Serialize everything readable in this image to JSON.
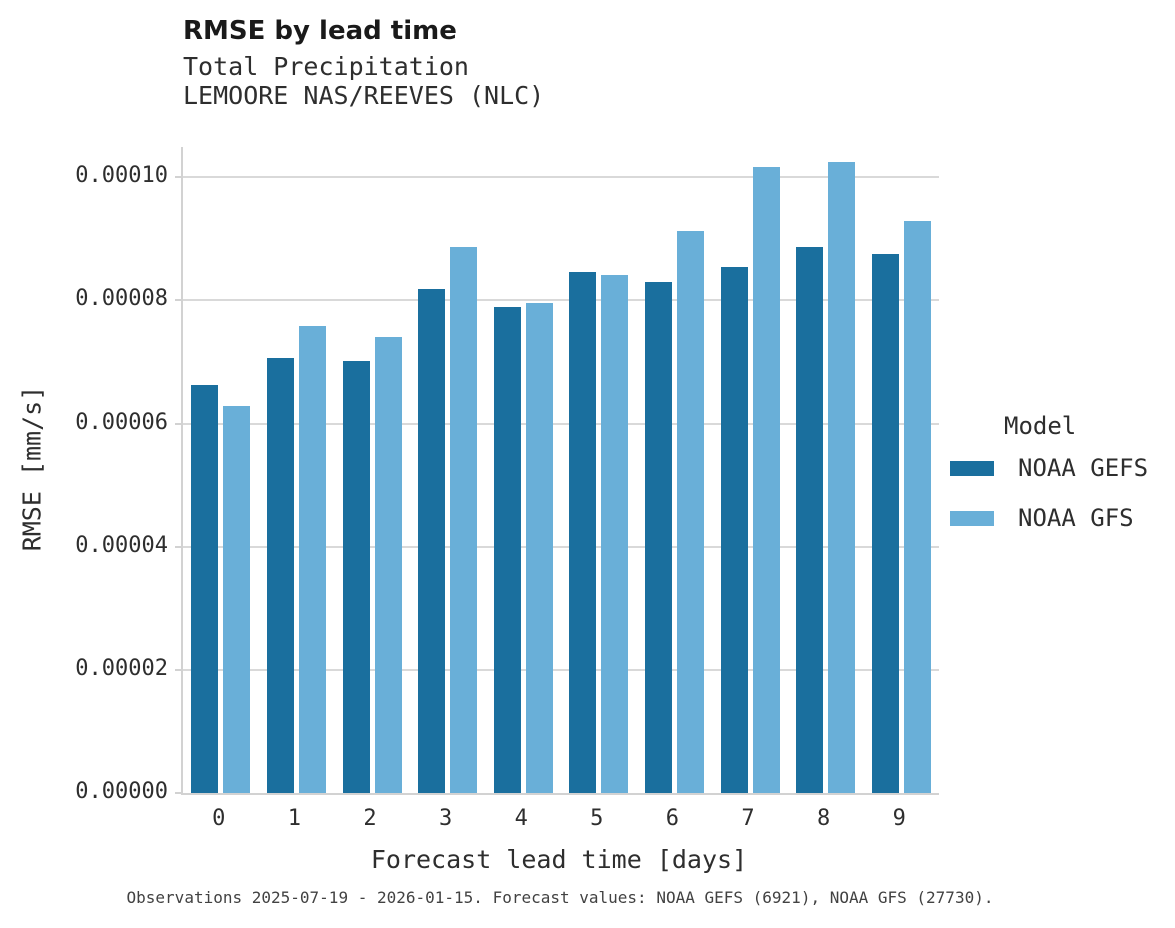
{
  "chart_data": {
    "type": "bar",
    "title": "RMSE by lead time",
    "subtitle": "Total Precipitation",
    "subtitle2": "LEMOORE NAS/REEVES (NLC)",
    "xlabel": "Forecast lead time [days]",
    "ylabel": "RMSE [mm/s]",
    "categories": [
      "0",
      "1",
      "2",
      "3",
      "4",
      "5",
      "6",
      "7",
      "8",
      "9"
    ],
    "series": [
      {
        "name": "NOAA GEFS",
        "color": "#1A6F9E",
        "values": [
          6.62e-05,
          7.07e-05,
          7.01e-05,
          8.18e-05,
          7.89e-05,
          8.46e-05,
          8.29e-05,
          8.54e-05,
          8.86e-05,
          8.75e-05
        ]
      },
      {
        "name": "NOAA GFS",
        "color": "#69AFD8",
        "values": [
          6.28e-05,
          7.59e-05,
          7.41e-05,
          8.86e-05,
          7.96e-05,
          8.41e-05,
          9.12e-05,
          0.0001016,
          0.0001024,
          9.29e-05
        ]
      }
    ],
    "ylim": [
      0,
      0.0001049
    ],
    "yticks": [
      0,
      2e-05,
      4e-05,
      6e-05,
      8e-05,
      0.0001
    ],
    "ytick_labels": [
      "0.00000",
      "0.00002",
      "0.00004",
      "0.00006",
      "0.00008",
      "0.00010"
    ],
    "grid": "horizontal",
    "legend_title": "Model",
    "legend_position": "right",
    "caption": "Observations 2025-07-19 - 2026-01-15. Forecast values: NOAA GEFS (6921), NOAA GFS (27730).",
    "colors": {
      "grid": "#d9d9d9",
      "spine": "#d2d2d2",
      "title_text": "#1a1a1a",
      "body_text": "#2e2e2e",
      "caption_text": "#424242"
    }
  }
}
